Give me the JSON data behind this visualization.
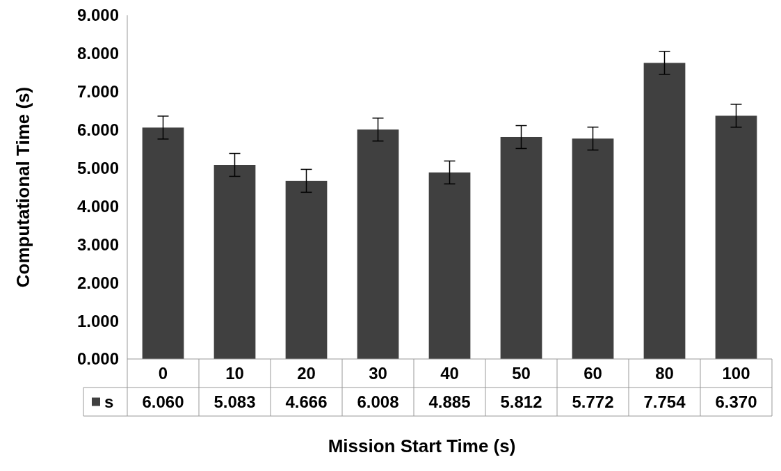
{
  "chart_data": {
    "type": "bar",
    "xlabel": "Mission Start Time (s)",
    "ylabel": "Computational Time (s)",
    "categories": [
      "0",
      "10",
      "20",
      "30",
      "40",
      "50",
      "60",
      "80",
      "100"
    ],
    "series": [
      {
        "name": "s",
        "color": "#404040",
        "values": [
          6.06,
          5.083,
          4.666,
          6.008,
          4.885,
          5.812,
          5.772,
          7.754,
          6.37
        ],
        "value_labels": [
          "6.060",
          "5.083",
          "4.666",
          "6.008",
          "4.885",
          "5.812",
          "5.772",
          "7.754",
          "6.370"
        ],
        "errors": [
          0.3,
          0.3,
          0.3,
          0.3,
          0.3,
          0.3,
          0.3,
          0.3,
          0.3
        ]
      }
    ],
    "ylim": [
      0,
      9
    ],
    "yticks": [
      {
        "value": 0,
        "label": "0.000"
      },
      {
        "value": 1,
        "label": "1.000"
      },
      {
        "value": 2,
        "label": "2.000"
      },
      {
        "value": 3,
        "label": "3.000"
      },
      {
        "value": 4,
        "label": "4.000"
      },
      {
        "value": 5,
        "label": "5.000"
      },
      {
        "value": 6,
        "label": "6.000"
      },
      {
        "value": 7,
        "label": "7.000"
      },
      {
        "value": 8,
        "label": "8.000"
      },
      {
        "value": 9,
        "label": "9.000"
      }
    ],
    "grid": false,
    "legend": "bottom left"
  }
}
